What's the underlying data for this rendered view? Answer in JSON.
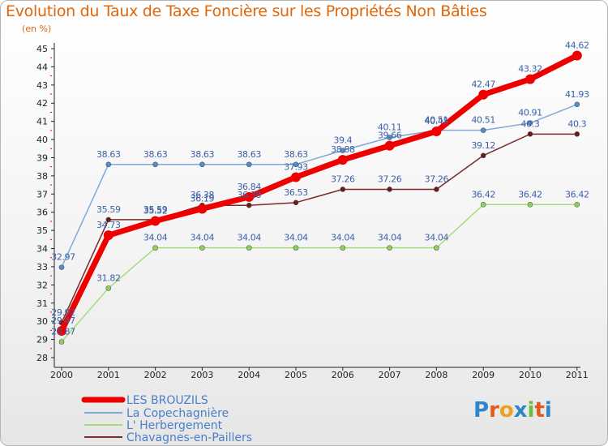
{
  "chart_data": {
    "type": "line",
    "title": "Evolution du Taux de Taxe Foncière sur les Propriétés Non Bâties",
    "ylabel": "(en %)",
    "xlabel": "",
    "ylim": [
      28,
      45
    ],
    "yticks": [
      "28",
      "29",
      "30",
      "31",
      "32",
      "33",
      "34",
      "35",
      "36",
      "37",
      "38",
      "39",
      "40",
      "41",
      "42",
      "43",
      "44",
      "45"
    ],
    "categories": [
      "2000",
      "2001",
      "2002",
      "2003",
      "2004",
      "2005",
      "2006",
      "2007",
      "2008",
      "2009",
      "2010",
      "2011"
    ],
    "grid": false,
    "legend": "bottom-left",
    "series": [
      {
        "name": "LES BROUZILS",
        "color": "#ee0000",
        "values": [
          29.47,
          34.73,
          35.52,
          36.19,
          36.84,
          37.93,
          38.88,
          39.66,
          40.45,
          42.47,
          43.32,
          44.62
        ],
        "labels": [
          "29.47",
          "34.73",
          "35.52",
          "36.19",
          "36.84",
          "37.93",
          "38.88",
          "39.66",
          "40.45",
          "42.47",
          "43.32",
          "44.62"
        ]
      },
      {
        "name": "La Copechagnière",
        "color": "#5b9bd5",
        "values": [
          32.97,
          38.63,
          38.63,
          38.63,
          38.63,
          38.63,
          39.4,
          40.11,
          40.51,
          40.51,
          40.91,
          41.93
        ],
        "labels": [
          "32.97",
          "38.63",
          "38.63",
          "38.63",
          "38.63",
          "38.63",
          "39.4",
          "40.11",
          "40.51",
          "40.51",
          "40.91",
          "41.93"
        ]
      },
      {
        "name": "L' Herbergement",
        "color": "#99dd66",
        "values": [
          28.87,
          31.82,
          34.04,
          34.04,
          34.04,
          34.04,
          34.04,
          34.04,
          34.04,
          36.42,
          36.42,
          36.42
        ],
        "labels": [
          "28.87",
          "31.82",
          "34.04",
          "34.04",
          "34.04",
          "34.04",
          "34.04",
          "34.04",
          "34.04",
          "36.42",
          "36.42",
          "36.42"
        ]
      },
      {
        "name": "Chavagnes-en-Paillers",
        "color": "#7a2020",
        "values": [
          29.92,
          35.59,
          35.59,
          36.38,
          36.38,
          36.53,
          37.26,
          37.26,
          37.26,
          39.12,
          40.3,
          40.3
        ],
        "labels": [
          "29.92",
          "35.59",
          "35.59",
          "36.38",
          "36.38",
          "36.53",
          "37.26",
          "37.26",
          "37.26",
          "39.12",
          "40.3",
          "40.3"
        ]
      }
    ]
  },
  "logo": {
    "text": "Proxiti"
  },
  "colors": {
    "title": "#e0660a",
    "legend_text": "#4a7fc8"
  }
}
